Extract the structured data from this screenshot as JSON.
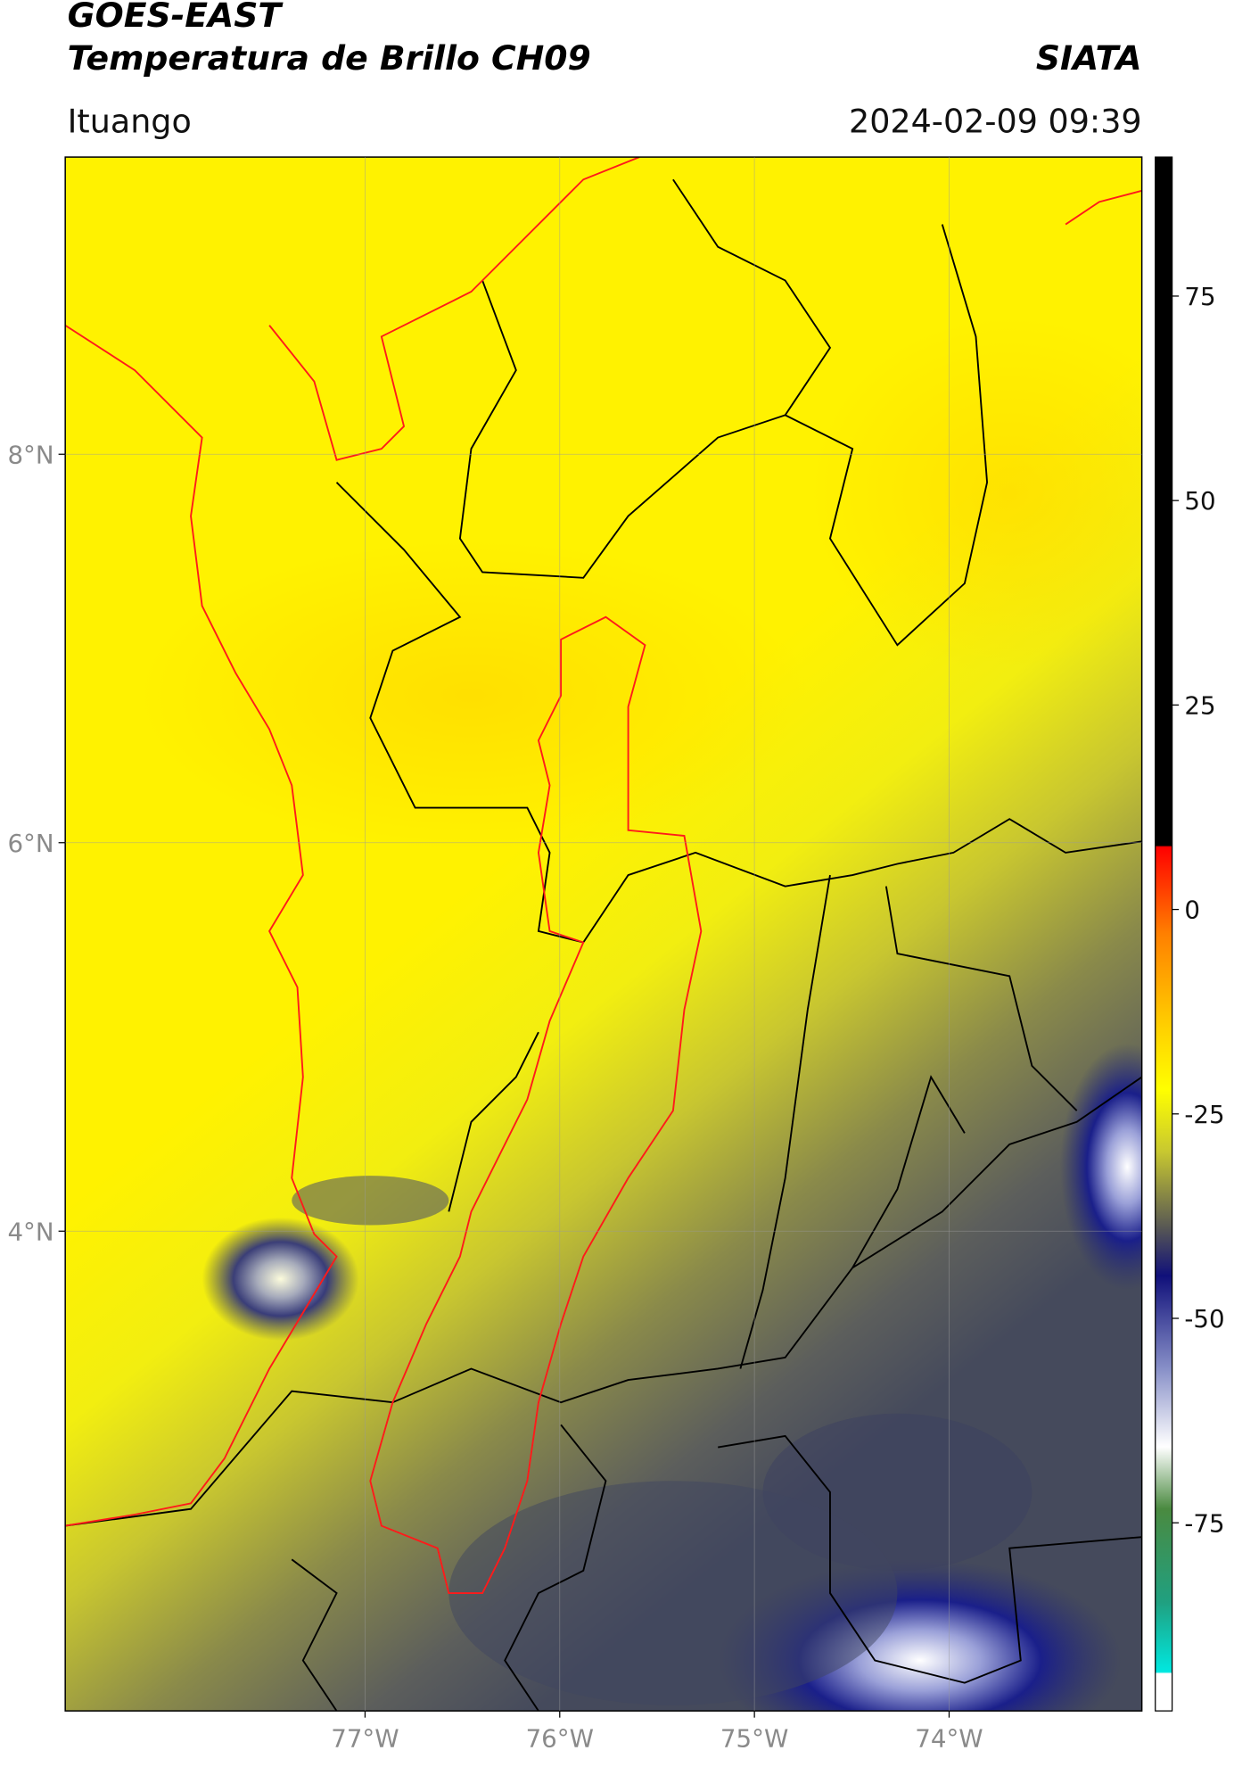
{
  "header": {
    "title": "GOES-EAST",
    "subtitle": "Temperatura de Brillo CH09",
    "brand": "SIATA",
    "location": "Ituango",
    "timestamp": "2024-02-09 09:39"
  },
  "map": {
    "xlim": [
      -78.54,
      -73.01
    ],
    "ylim": [
      1.53,
      9.53
    ],
    "xticks": [
      {
        "value": -77,
        "label": "77°W"
      },
      {
        "value": -76,
        "label": "76°W"
      },
      {
        "value": -75,
        "label": "75°W"
      },
      {
        "value": -74,
        "label": "74°W"
      }
    ],
    "yticks": [
      {
        "value": 8,
        "label": "8°N"
      },
      {
        "value": 6,
        "label": "6°N"
      },
      {
        "value": 4,
        "label": "4°N"
      }
    ]
  },
  "colorbar": {
    "lim": [
      -98,
      92
    ],
    "ticks": [
      75,
      50,
      25,
      0,
      -25,
      -50,
      -75
    ]
  }
}
